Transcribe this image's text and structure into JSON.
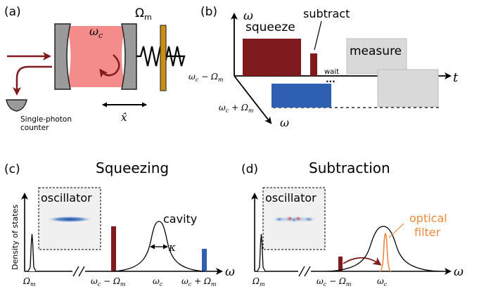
{
  "panels": {
    "a": {
      "label": "(a)",
      "omega_m": "Ω",
      "omega_m_sub": "m",
      "omega_c": "ω",
      "omega_c_sub": "c",
      "x_hat": "x̂",
      "detector_line1": "Single-photon",
      "detector_line2": "counter"
    },
    "b": {
      "label": "(b)",
      "squeeze": "squeeze",
      "subtract": "subtract",
      "wait": "wait",
      "measure": "measure",
      "t_axis": "t",
      "omega_axis": "ω",
      "row_minus": "ω",
      "row_minus_sub": "c",
      "row_minus_rest": " − Ω",
      "row_minus_rest_sub": "m",
      "row_plus": "ω",
      "row_plus_sub": "c",
      "row_plus_rest": " + Ω",
      "row_plus_rest_sub": "m",
      "ellipsis": "..."
    },
    "c": {
      "label": "(c)",
      "title": "Squeezing",
      "inset": "oscillator",
      "cavity": "cavity",
      "kappa": "κ",
      "ylabel": "Density of states",
      "omega_axis": "ω",
      "tick_omega_m": "Ω",
      "tick_omega_m_sub": "m",
      "tick_minus": "ω",
      "tick_minus_sub": "c",
      "tick_minus_rest": " − Ω",
      "tick_minus_rest_sub": "m",
      "tick_center": "ω",
      "tick_center_sub": "c",
      "tick_plus": "ω",
      "tick_plus_sub": "c",
      "tick_plus_rest": " + Ω",
      "tick_plus_rest_sub": "m"
    },
    "d": {
      "label": "(d)",
      "title": "Subtraction",
      "inset": "oscillator",
      "filter_line1": "optical",
      "filter_line2": "filter",
      "omega_axis": "ω",
      "tick_omega_m": "Ω",
      "tick_omega_m_sub": "m",
      "tick_minus": "ω",
      "tick_minus_sub": "c",
      "tick_minus_rest": " − Ω",
      "tick_minus_rest_sub": "m",
      "tick_center": "ω",
      "tick_center_sub": "c"
    }
  },
  "colors": {
    "dark_red": "#7f1a1f",
    "blue": "#2e5fb0",
    "gray_box": "#d9d9d9",
    "gold": "#c8900c",
    "cavity_pink": "#f58c8c",
    "mirror_gray": "#999999",
    "filter_orange": "#ee8a3c"
  },
  "icons": [
    "arrow-right-icon",
    "spring-icon",
    "detector-icon",
    "double-arrow-icon",
    "axis-break-icon"
  ]
}
